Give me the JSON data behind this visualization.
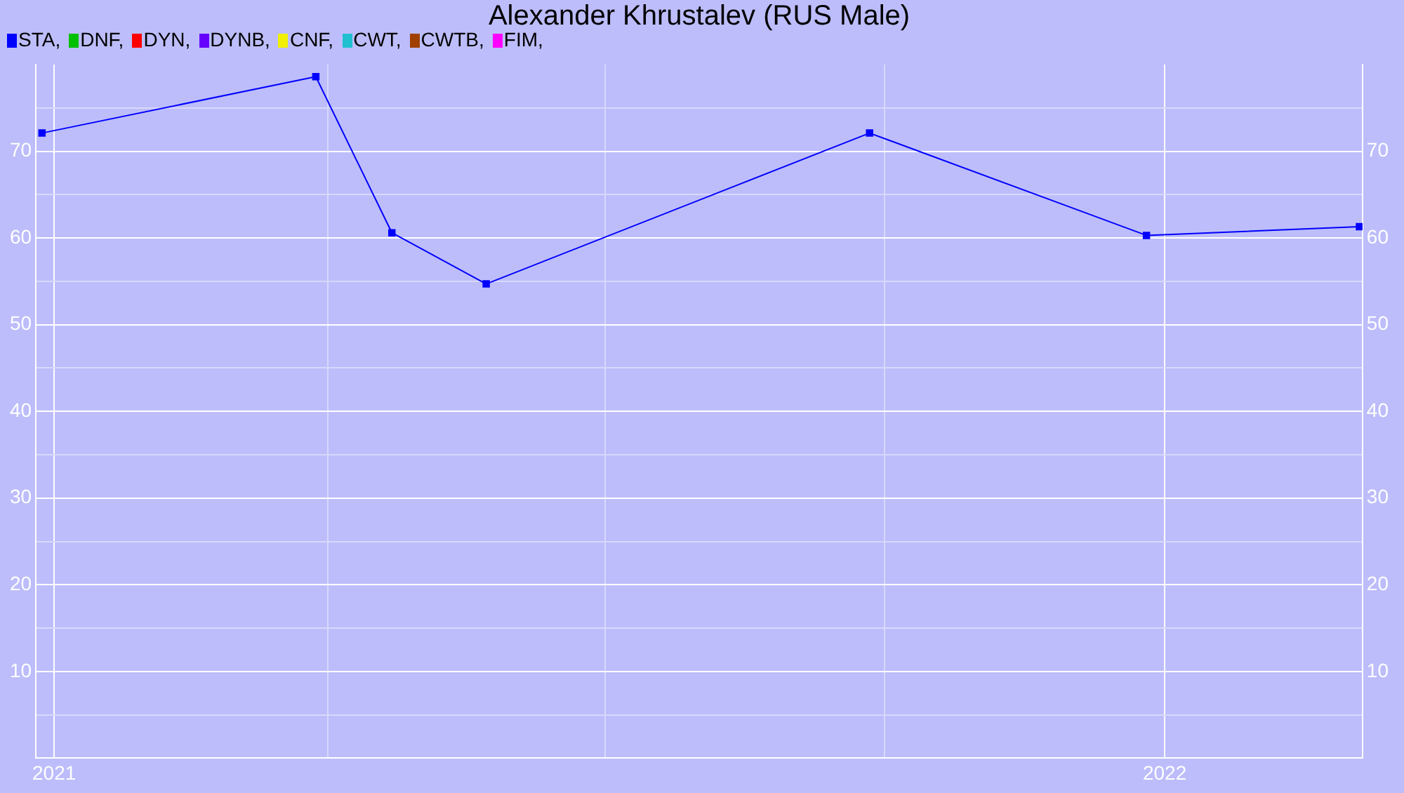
{
  "chart_data": {
    "type": "line",
    "title": "Alexander Khrustalev (RUS Male)",
    "x": [
      "2020-12-28",
      "2021-03-28",
      "2021-04-22",
      "2021-05-23",
      "2021-09-26",
      "2021-12-26",
      "2022-03-06"
    ],
    "series": [
      {
        "name": "STA,",
        "color": "#0000ff",
        "values": [
          72.1,
          78.6,
          60.6,
          54.7,
          72.1,
          60.3,
          61.3
        ]
      },
      {
        "name": "DNF,",
        "color": "#00c000",
        "values": [
          null,
          null,
          null,
          null,
          null,
          null,
          null
        ]
      },
      {
        "name": "DYN,",
        "color": "#ff0000",
        "values": [
          null,
          null,
          null,
          null,
          null,
          null,
          null
        ]
      },
      {
        "name": "DYNB,",
        "color": "#6600ff",
        "values": [
          null,
          null,
          null,
          null,
          null,
          null,
          null
        ]
      },
      {
        "name": "CNF,",
        "color": "#f0f000",
        "values": [
          null,
          null,
          null,
          null,
          null,
          null,
          null
        ]
      },
      {
        "name": "CWT,",
        "color": "#20c0d0",
        "values": [
          null,
          null,
          null,
          null,
          null,
          null,
          null
        ]
      },
      {
        "name": "CWTB,",
        "color": "#a04000",
        "values": [
          null,
          null,
          null,
          null,
          null,
          null,
          null
        ]
      },
      {
        "name": "FIM,",
        "color": "#ff00ff",
        "values": [
          null,
          null,
          null,
          null,
          null,
          null,
          null
        ]
      }
    ],
    "xlim": [
      "2020-12-26",
      "2022-03-07"
    ],
    "xticks": [
      {
        "value": "2021",
        "label": "2021"
      },
      {
        "value": "2021-04",
        "label": null
      },
      {
        "value": "2021-07",
        "label": null
      },
      {
        "value": "2021-10",
        "label": null
      },
      {
        "value": "2022",
        "label": "2022"
      }
    ],
    "ylim": [
      0,
      80
    ],
    "yticks": [
      {
        "value": 5,
        "label": null
      },
      10,
      {
        "value": 15,
        "label": null
      },
      20,
      {
        "value": 25,
        "label": null
      },
      30,
      {
        "value": 35,
        "label": null
      },
      40,
      {
        "value": 45,
        "label": null
      },
      50,
      {
        "value": 55,
        "label": null
      },
      60,
      {
        "value": 65,
        "label": null
      },
      70,
      {
        "value": 75,
        "label": null
      }
    ],
    "y2lim": [
      0,
      80
    ],
    "y2ticks": [
      10,
      20,
      30,
      40,
      50,
      60,
      70
    ],
    "grid": true,
    "legend": "top left",
    "marker": "square",
    "line_style": "solid"
  }
}
